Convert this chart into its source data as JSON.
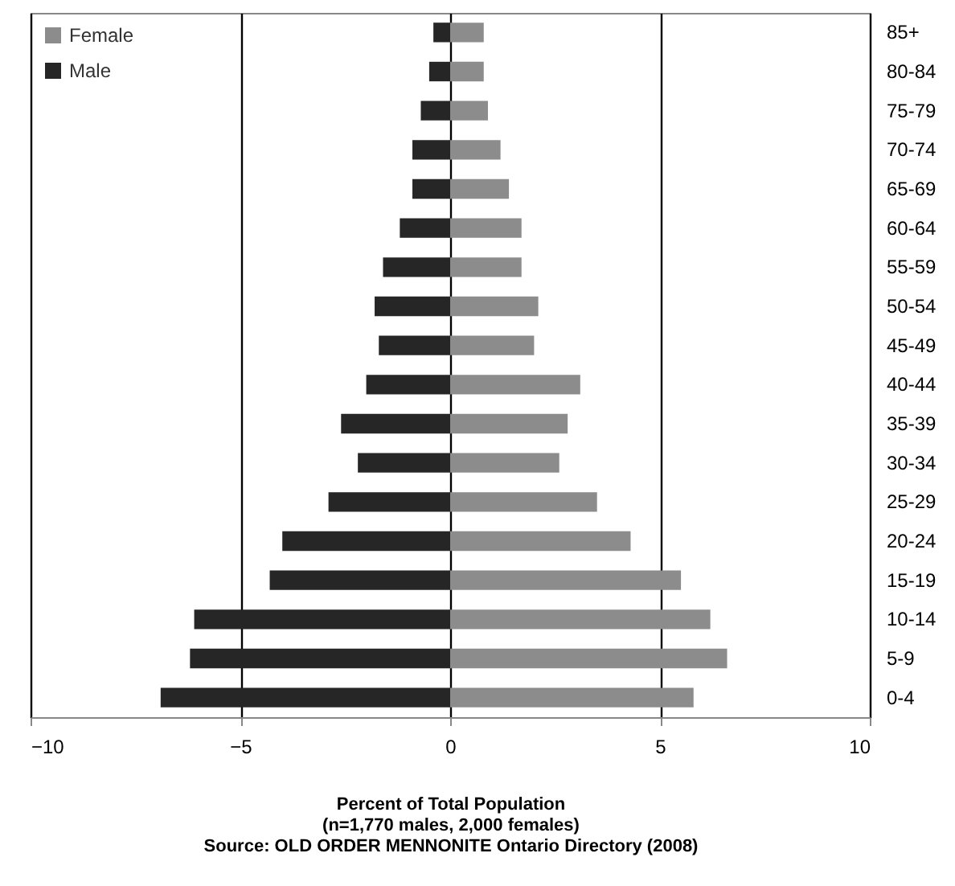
{
  "chart_data": {
    "type": "bar",
    "orientation": "horizontal",
    "xlabel": "Percent of Total Population",
    "annotations": [
      "(n=1,770 males, 2,000 females)",
      "Source: OLD ORDER MENNONITE Ontario Directory (2008)"
    ],
    "categories": [
      "85+",
      "80-84",
      "75-79",
      "70-74",
      "65-69",
      "60-64",
      "55-59",
      "50-54",
      "45-49",
      "40-44",
      "35-39",
      "30-34",
      "25-29",
      "20-24",
      "15-19",
      "10-14",
      "5-9",
      "0-4"
    ],
    "series": [
      {
        "name": "Female",
        "color": "#8c8c8c",
        "values": [
          0.8,
          0.8,
          0.9,
          1.2,
          1.4,
          1.7,
          1.7,
          2.1,
          2.0,
          3.1,
          2.8,
          2.6,
          3.5,
          4.3,
          5.5,
          6.2,
          6.6,
          5.8
        ]
      },
      {
        "name": "Male",
        "color": "#262626",
        "values": [
          -0.4,
          -0.5,
          -0.7,
          -0.9,
          -0.9,
          -1.2,
          -1.6,
          -1.8,
          -1.7,
          -2.0,
          -2.6,
          -2.2,
          -2.9,
          -4.0,
          -4.3,
          -6.1,
          -6.2,
          -6.9
        ]
      }
    ],
    "xlim": [
      -10,
      10
    ],
    "xticks": [
      -10,
      -5,
      0,
      5,
      10
    ],
    "grid": "x",
    "legend": "top left",
    "stacked": true
  }
}
